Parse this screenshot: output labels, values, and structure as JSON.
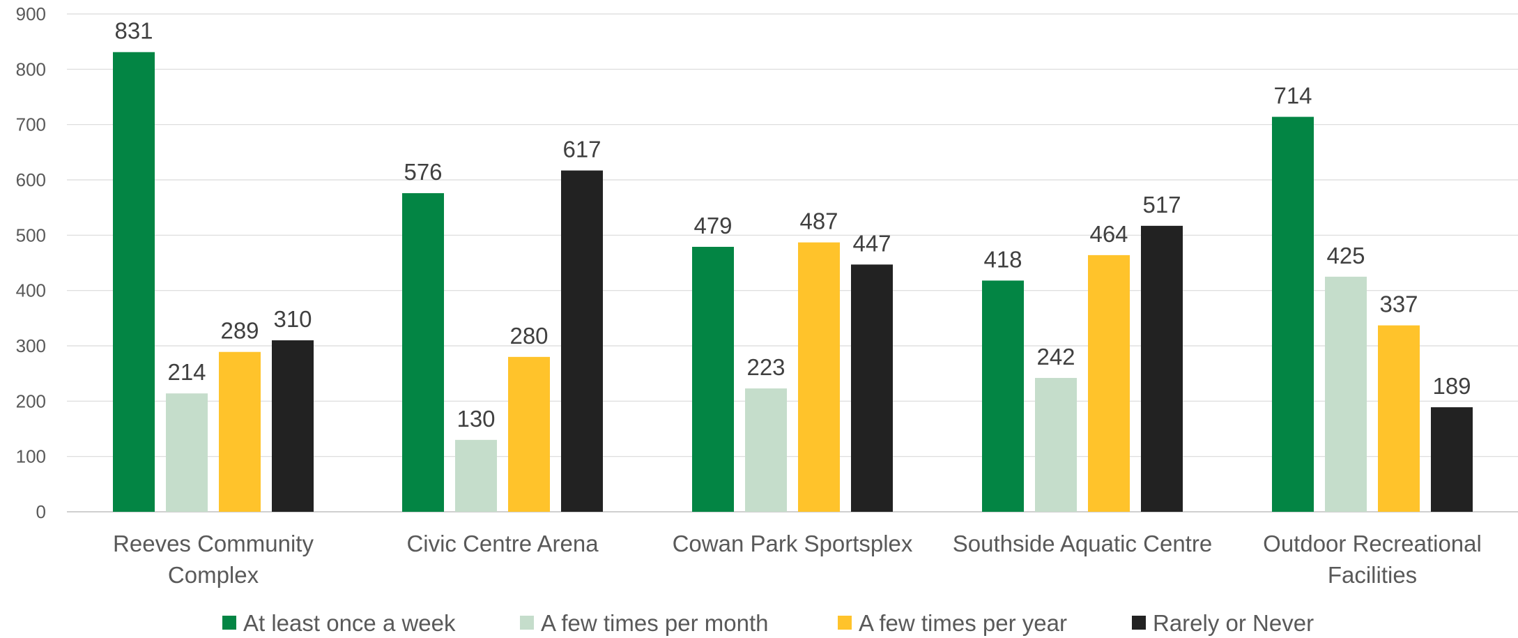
{
  "chart_data": {
    "type": "bar",
    "title": "",
    "xlabel": "",
    "ylabel": "",
    "ylim": [
      0,
      900
    ],
    "yticks": [
      0,
      100,
      200,
      300,
      400,
      500,
      600,
      700,
      800,
      900
    ],
    "grid": true,
    "legend_position": "bottom",
    "categories": [
      [
        "Reeves Community",
        "Complex"
      ],
      [
        "Civic Centre Arena"
      ],
      [
        "Cowan Park Sportsplex"
      ],
      [
        "Southside Aquatic Centre"
      ],
      [
        "Outdoor Recreational",
        "Facilities"
      ]
    ],
    "series": [
      {
        "name": "At least once a week",
        "color": "#038544",
        "values": [
          831,
          576,
          479,
          418,
          714
        ]
      },
      {
        "name": "A few times per month",
        "color": "#C5DDCB",
        "values": [
          214,
          130,
          223,
          242,
          425
        ]
      },
      {
        "name": "A few times per year",
        "color": "#FFC32B",
        "values": [
          289,
          280,
          487,
          464,
          337
        ]
      },
      {
        "name": "Rarely or Never",
        "color": "#222222",
        "values": [
          310,
          617,
          447,
          517,
          189
        ]
      }
    ]
  }
}
